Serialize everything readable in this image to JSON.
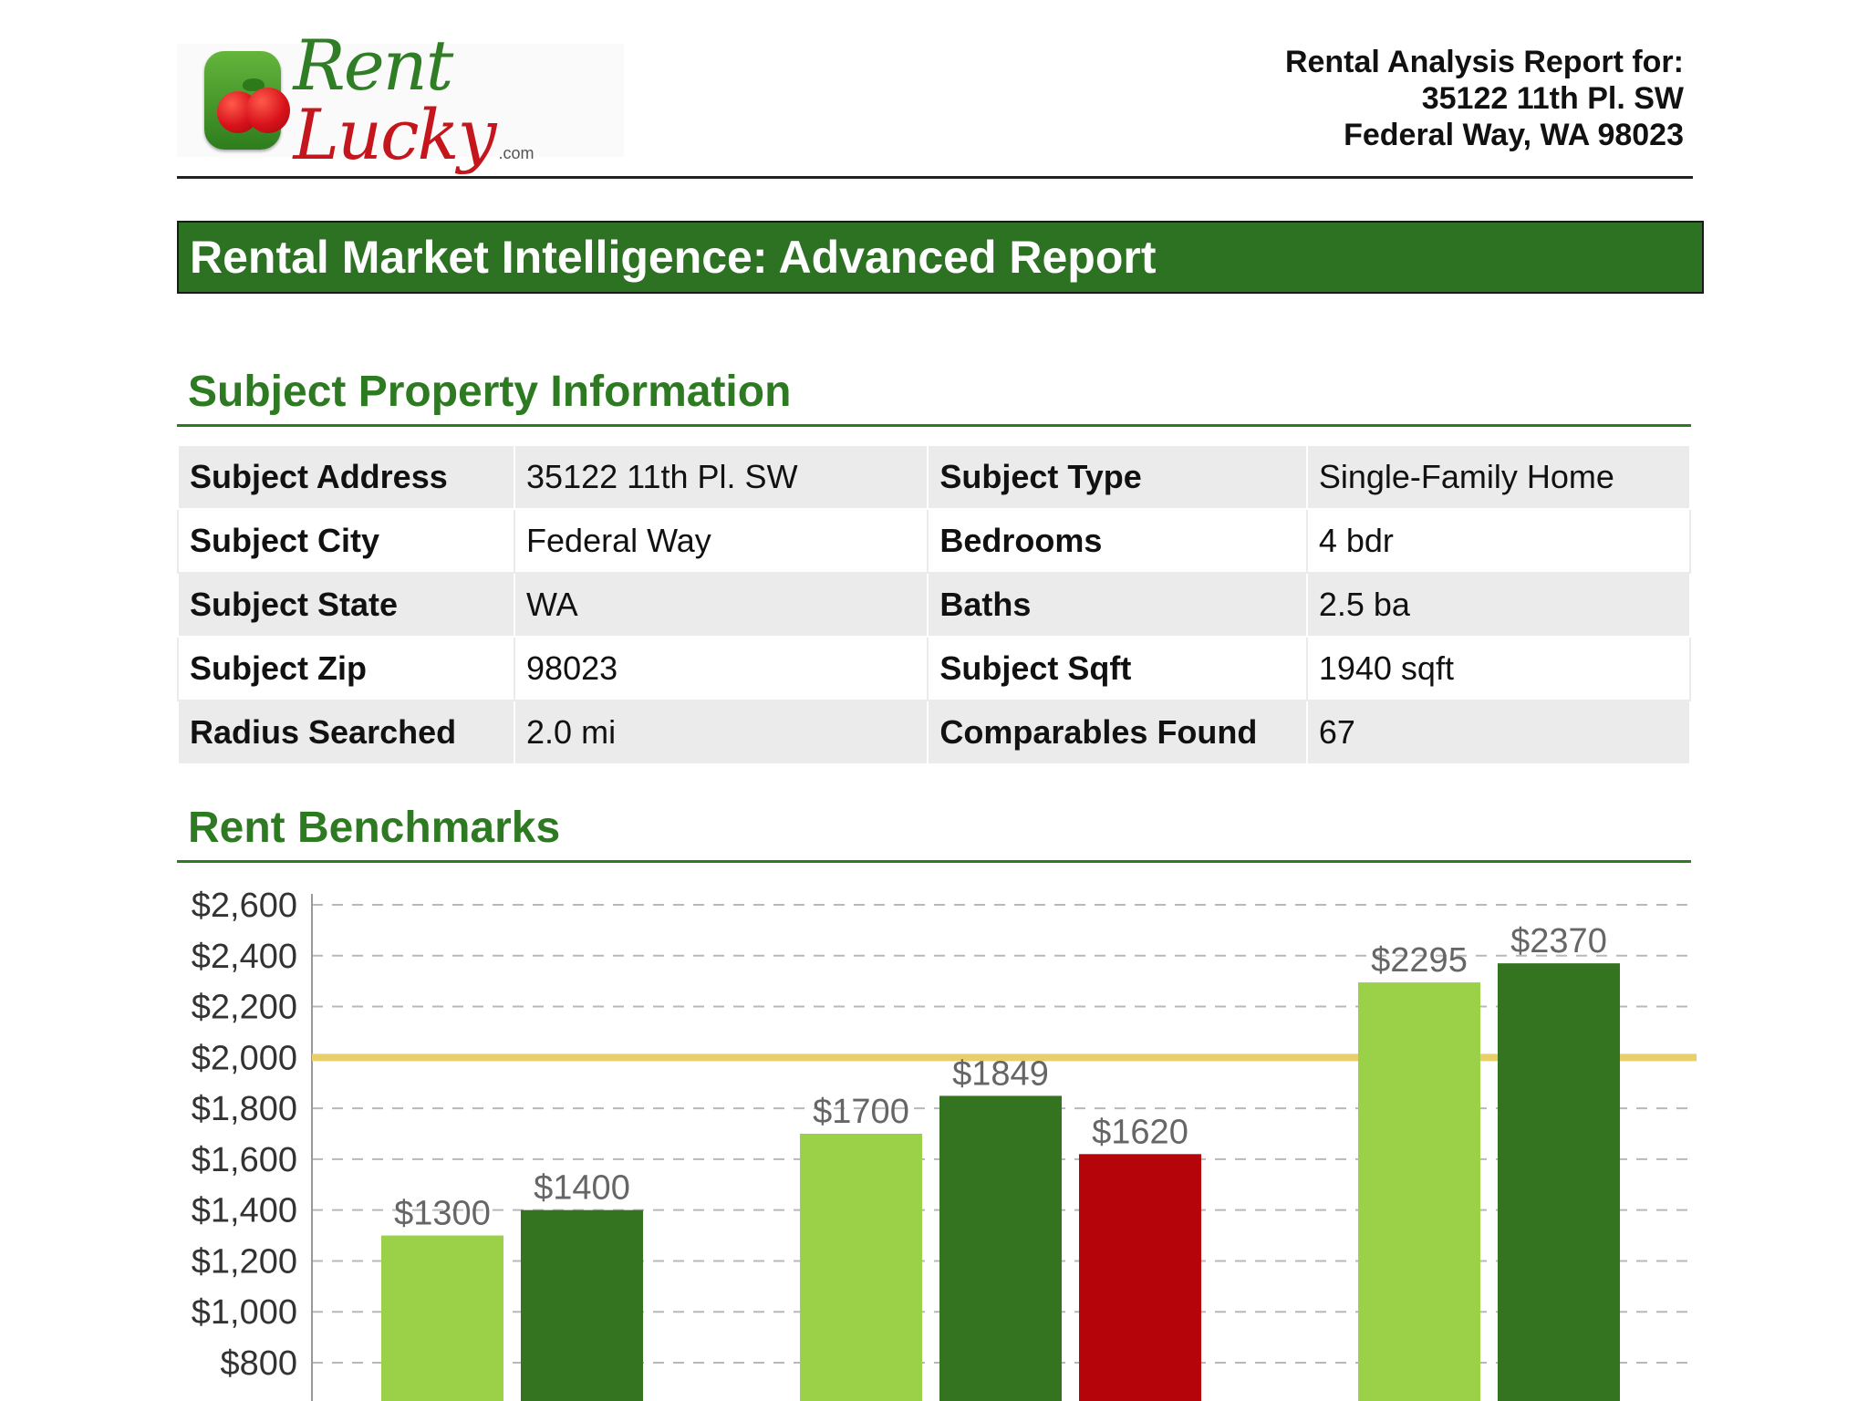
{
  "header": {
    "logo": {
      "icon": "tomatoes-icon",
      "brand_part1": "Rent",
      "brand_part2": "Lucky",
      "brand_suffix": ".com"
    },
    "report_for": {
      "line1": "Rental Analysis Report for:",
      "line2": "35122 11th Pl. SW",
      "line3": "Federal Way, WA 98023"
    }
  },
  "banner": {
    "title": "Rental Market Intelligence: Advanced Report"
  },
  "subject_section": {
    "title": "Subject Property Information",
    "rows": [
      {
        "label_a": "Subject Address",
        "value_a": "35122 11th Pl. SW",
        "label_b": "Subject Type",
        "value_b": "Single-Family Home"
      },
      {
        "label_a": "Subject City",
        "value_a": "Federal Way",
        "label_b": "Bedrooms",
        "value_b": "4 bdr"
      },
      {
        "label_a": "Subject State",
        "value_a": "WA",
        "label_b": "Baths",
        "value_b": "2.5 ba"
      },
      {
        "label_a": "Subject Zip",
        "value_a": "98023",
        "label_b": "Subject Sqft",
        "value_b": "1940 sqft"
      },
      {
        "label_a": "Radius Searched",
        "value_a": "2.0 mi",
        "label_b": "Comparables Found",
        "value_b": "67"
      }
    ]
  },
  "benchmarks_section": {
    "title": "Rent Benchmarks"
  },
  "colors": {
    "brand_green": "#2e7a22",
    "light_green": "#9bd148",
    "dark_green": "#347420",
    "red": "#b5050a",
    "reference_line": "#e8cf6a"
  },
  "chart_data": {
    "type": "bar",
    "title": "",
    "xlabel": "",
    "ylabel": "",
    "ylim": [
      600,
      2600
    ],
    "yticks": [
      800,
      1000,
      1200,
      1400,
      1600,
      1800,
      2000,
      2200,
      2400,
      2600
    ],
    "ytick_labels": [
      "$800",
      "$1,000",
      "$1,200",
      "$1,400",
      "$1,600",
      "$1,800",
      "$2,000",
      "$2,200",
      "$2,400",
      "$2,600"
    ],
    "reference_line": 2000,
    "grid": true,
    "groups": [
      {
        "bars": [
          {
            "value": 1300,
            "label": "$1300",
            "color": "light_green"
          },
          {
            "value": 1400,
            "label": "$1400",
            "color": "dark_green"
          }
        ]
      },
      {
        "bars": [
          {
            "value": 1700,
            "label": "$1700",
            "color": "light_green"
          },
          {
            "value": 1849,
            "label": "$1849",
            "color": "dark_green"
          },
          {
            "value": 1620,
            "label": "$1620",
            "color": "red"
          }
        ]
      },
      {
        "bars": [
          {
            "value": 2295,
            "label": "$2295",
            "color": "light_green"
          },
          {
            "value": 2370,
            "label": "$2370",
            "color": "dark_green"
          }
        ]
      }
    ]
  }
}
